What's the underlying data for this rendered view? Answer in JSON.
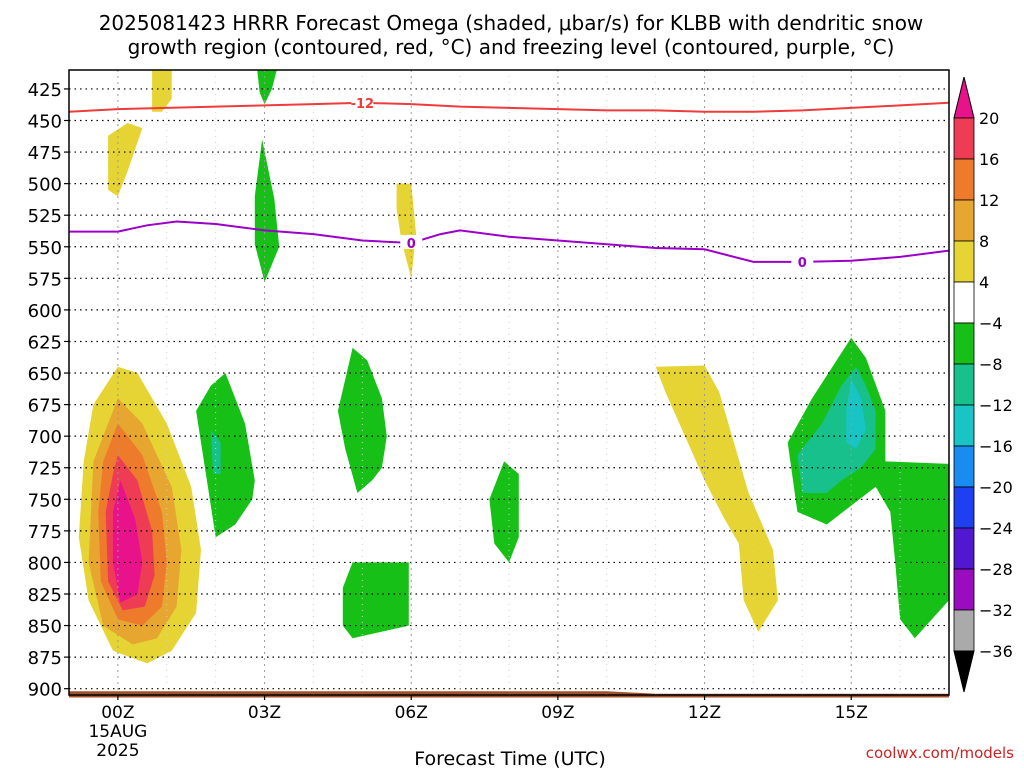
{
  "chart_data": {
    "type": "heatmap",
    "title_line1": "2025081423 HRRR Forecast Omega (shaded, μbar/s) for KLBB with dendritic snow",
    "title_line2": "growth region (contoured, red, °C) and freezing level (contoured, purple, °C)",
    "xlabel": "Forecast Time (UTC)",
    "credit": "coolwx.com/models",
    "x_range_hours": [
      -1,
      17
    ],
    "y_range_hpa": [
      905,
      410
    ],
    "y_ticks": [
      {
        "value": 425,
        "label": "425"
      },
      {
        "value": 450,
        "label": "450"
      },
      {
        "value": 475,
        "label": "475"
      },
      {
        "value": 500,
        "label": "500"
      },
      {
        "value": 525,
        "label": "525"
      },
      {
        "value": 550,
        "label": "550"
      },
      {
        "value": 575,
        "label": "575"
      },
      {
        "value": 600,
        "label": "600"
      },
      {
        "value": 625,
        "label": "625"
      },
      {
        "value": 650,
        "label": "650"
      },
      {
        "value": 675,
        "label": "675"
      },
      {
        "value": 700,
        "label": "700"
      },
      {
        "value": 725,
        "label": "725"
      },
      {
        "value": 750,
        "label": "750"
      },
      {
        "value": 775,
        "label": "775"
      },
      {
        "value": 800,
        "label": "800"
      },
      {
        "value": 825,
        "label": "825"
      },
      {
        "value": 850,
        "label": "850"
      },
      {
        "value": 875,
        "label": "875"
      },
      {
        "value": 900,
        "label": "900"
      }
    ],
    "x_ticks": [
      {
        "value": 0,
        "label": "00Z",
        "sub1": "15AUG",
        "sub2": "2025"
      },
      {
        "value": 3,
        "label": "03Z"
      },
      {
        "value": 6,
        "label": "06Z"
      },
      {
        "value": 9,
        "label": "09Z"
      },
      {
        "value": 12,
        "label": "12Z"
      },
      {
        "value": 15,
        "label": "15Z"
      }
    ],
    "colorbar": {
      "labels": [
        "20",
        "16",
        "12",
        "8",
        "4",
        "−4",
        "−8",
        "−12",
        "−16",
        "−20",
        "−24",
        "−28",
        "−32",
        "−36"
      ],
      "colors": [
        "#ee3c55",
        "#ee7a2c",
        "#e6a630",
        "#e6d434",
        "#ffffff",
        "#16c016",
        "#18c08c",
        "#18c4c4",
        "#188cf0",
        "#1e40f0",
        "#5018d0",
        "#9a0cc0",
        "#aaaaaa"
      ],
      "top_color": "#e8128a",
      "bottom_color": "#000000"
    },
    "dendritic_contour": {
      "label": "-12",
      "color": "#ee3c3c",
      "label_x": 5.0,
      "points": [
        [
          -1,
          443
        ],
        [
          0,
          441
        ],
        [
          1,
          440
        ],
        [
          2,
          439
        ],
        [
          3,
          438
        ],
        [
          4,
          437
        ],
        [
          5,
          436
        ],
        [
          6,
          437
        ],
        [
          7,
          439
        ],
        [
          8,
          440
        ],
        [
          9,
          441
        ],
        [
          10,
          442
        ],
        [
          11,
          442
        ],
        [
          12,
          443
        ],
        [
          13,
          443
        ],
        [
          14,
          442
        ],
        [
          15,
          440
        ],
        [
          16,
          438
        ],
        [
          17,
          436
        ]
      ]
    },
    "freezing_level": {
      "label": "0",
      "color": "#9a00c8",
      "label_x": 6.0,
      "label_x2": 14.0,
      "points": [
        [
          -1,
          538
        ],
        [
          0,
          538
        ],
        [
          0.6,
          533
        ],
        [
          1.2,
          530
        ],
        [
          2,
          532
        ],
        [
          3,
          537
        ],
        [
          4,
          540
        ],
        [
          5,
          545
        ],
        [
          6,
          547
        ],
        [
          6.6,
          540
        ],
        [
          7,
          537
        ],
        [
          8,
          542
        ],
        [
          9,
          545
        ],
        [
          10,
          548
        ],
        [
          11,
          551
        ],
        [
          12,
          552
        ],
        [
          13,
          562
        ],
        [
          14,
          562
        ],
        [
          15,
          561
        ],
        [
          16,
          558
        ],
        [
          17,
          553
        ]
      ]
    },
    "terrain": {
      "color": "#a0522d",
      "top_hpa_left": 902,
      "top_hpa_right": 904,
      "bottom_hpa": 907
    },
    "shaded_regions": [
      {
        "name": "pos-4-top-left",
        "color": "#e6d434",
        "points": [
          [
            0.7,
            410
          ],
          [
            1.1,
            410
          ],
          [
            1.1,
            433
          ],
          [
            0.9,
            443
          ],
          [
            0.7,
            443
          ]
        ]
      },
      {
        "name": "pos-4-early",
        "color": "#e6d434",
        "points": [
          [
            -0.2,
            462
          ],
          [
            0.2,
            452
          ],
          [
            0.5,
            456
          ],
          [
            0.2,
            490
          ],
          [
            0,
            510
          ],
          [
            -0.2,
            505
          ]
        ]
      },
      {
        "name": "neg-4-top",
        "color": "#16c016",
        "points": [
          [
            2.85,
            410
          ],
          [
            3.25,
            410
          ],
          [
            3.15,
            425
          ],
          [
            3,
            437
          ],
          [
            2.9,
            428
          ]
        ]
      },
      {
        "name": "neg-4-mid",
        "color": "#16c016",
        "points": [
          [
            2.95,
            465
          ],
          [
            3.2,
            512
          ],
          [
            3.3,
            550
          ],
          [
            3,
            578
          ],
          [
            2.8,
            548
          ],
          [
            2.8,
            510
          ]
        ]
      },
      {
        "name": "pos-4-06z",
        "color": "#e6d434",
        "points": [
          [
            5.7,
            500
          ],
          [
            6,
            500
          ],
          [
            6.1,
            540
          ],
          [
            6,
            575
          ],
          [
            5.8,
            545
          ],
          [
            5.7,
            520
          ]
        ]
      },
      {
        "name": "pos-4-main",
        "color": "#e6d434",
        "points": [
          [
            0,
            645
          ],
          [
            0.4,
            650
          ],
          [
            1,
            690
          ],
          [
            1.5,
            740
          ],
          [
            1.7,
            790
          ],
          [
            1.6,
            840
          ],
          [
            1.1,
            870
          ],
          [
            0.6,
            880
          ],
          [
            -0.1,
            870
          ],
          [
            -0.6,
            830
          ],
          [
            -0.8,
            780
          ],
          [
            -0.7,
            720
          ],
          [
            -0.5,
            675
          ]
        ]
      },
      {
        "name": "pos-8-main",
        "color": "#e6a630",
        "points": [
          [
            0,
            670
          ],
          [
            0.5,
            690
          ],
          [
            1.1,
            740
          ],
          [
            1.3,
            790
          ],
          [
            1.2,
            835
          ],
          [
            0.8,
            860
          ],
          [
            0.3,
            865
          ],
          [
            -0.3,
            850
          ],
          [
            -0.6,
            800
          ],
          [
            -0.5,
            720
          ]
        ]
      },
      {
        "name": "pos-12-main",
        "color": "#ee7a2c",
        "points": [
          [
            0,
            690
          ],
          [
            0.5,
            715
          ],
          [
            0.9,
            760
          ],
          [
            1,
            800
          ],
          [
            0.9,
            835
          ],
          [
            0.5,
            850
          ],
          [
            0,
            845
          ],
          [
            -0.35,
            815
          ],
          [
            -0.4,
            760
          ],
          [
            -0.3,
            720
          ]
        ]
      },
      {
        "name": "pos-16-main",
        "color": "#ee3c55",
        "points": [
          [
            0,
            715
          ],
          [
            0.4,
            735
          ],
          [
            0.7,
            775
          ],
          [
            0.75,
            810
          ],
          [
            0.55,
            835
          ],
          [
            0.1,
            838
          ],
          [
            -0.2,
            815
          ],
          [
            -0.25,
            760
          ],
          [
            -0.1,
            730
          ]
        ]
      },
      {
        "name": "pos-20-main",
        "color": "#e8128a",
        "points": [
          [
            0.05,
            735
          ],
          [
            0.35,
            765
          ],
          [
            0.5,
            800
          ],
          [
            0.4,
            825
          ],
          [
            0.05,
            832
          ],
          [
            -0.1,
            800
          ],
          [
            -0.1,
            760
          ]
        ]
      },
      {
        "name": "neg-4-02z",
        "color": "#16c016",
        "points": [
          [
            1.9,
            660
          ],
          [
            2.2,
            650
          ],
          [
            2.6,
            690
          ],
          [
            2.8,
            735
          ],
          [
            2.75,
            750
          ],
          [
            2.4,
            770
          ],
          [
            2,
            780
          ],
          [
            1.8,
            730
          ],
          [
            1.6,
            680
          ]
        ]
      },
      {
        "name": "neg-8-02z",
        "color": "#18c08c",
        "points": [
          [
            1.9,
            695
          ],
          [
            2.1,
            705
          ],
          [
            2.1,
            730
          ],
          [
            1.95,
            730
          ]
        ]
      },
      {
        "name": "neg-4-05z",
        "color": "#16c016",
        "points": [
          [
            4.8,
            630
          ],
          [
            5.1,
            640
          ],
          [
            5.4,
            670
          ],
          [
            5.5,
            700
          ],
          [
            5.4,
            725
          ],
          [
            5.2,
            735
          ],
          [
            4.9,
            745
          ],
          [
            4.65,
            710
          ],
          [
            4.5,
            680
          ]
        ]
      },
      {
        "name": "neg-4-05z-low",
        "color": "#16c016",
        "points": [
          [
            4.8,
            800
          ],
          [
            5.95,
            800
          ],
          [
            5.95,
            850
          ],
          [
            4.8,
            860
          ],
          [
            4.6,
            850
          ],
          [
            4.6,
            820
          ]
        ]
      },
      {
        "name": "neg-4-08z",
        "color": "#16c016",
        "points": [
          [
            7.9,
            720
          ],
          [
            8.2,
            730
          ],
          [
            8.2,
            780
          ],
          [
            8,
            800
          ],
          [
            7.7,
            785
          ],
          [
            7.6,
            750
          ]
        ]
      },
      {
        "name": "pos-4-12z",
        "color": "#e6d434",
        "points": [
          [
            11,
            645
          ],
          [
            12,
            644
          ],
          [
            12.3,
            665
          ],
          [
            12.6,
            705
          ],
          [
            12.9,
            745
          ],
          [
            13.4,
            790
          ],
          [
            13.5,
            830
          ],
          [
            13.1,
            855
          ],
          [
            12.8,
            830
          ],
          [
            12.7,
            785
          ],
          [
            12.4,
            765
          ],
          [
            12,
            735
          ],
          [
            11.6,
            700
          ],
          [
            11.2,
            665
          ]
        ]
      },
      {
        "name": "neg-4-15z",
        "color": "#16c016",
        "points": [
          [
            15,
            622
          ],
          [
            15.3,
            638
          ],
          [
            15.7,
            680
          ],
          [
            15.7,
            720
          ],
          [
            17,
            722
          ],
          [
            17,
            830
          ],
          [
            16.3,
            860
          ],
          [
            16,
            845
          ],
          [
            15.9,
            800
          ],
          [
            15.8,
            760
          ],
          [
            15.5,
            740
          ],
          [
            15,
            755
          ],
          [
            14.5,
            770
          ],
          [
            13.9,
            760
          ],
          [
            13.7,
            705
          ],
          [
            14.2,
            670
          ],
          [
            14.7,
            640
          ]
        ]
      },
      {
        "name": "neg-8-15z",
        "color": "#18c08c",
        "points": [
          [
            15.1,
            645
          ],
          [
            15.3,
            660
          ],
          [
            15.5,
            680
          ],
          [
            15.5,
            710
          ],
          [
            15.2,
            725
          ],
          [
            14.8,
            735
          ],
          [
            14.5,
            745
          ],
          [
            14,
            745
          ],
          [
            13.9,
            715
          ],
          [
            14.4,
            690
          ],
          [
            14.8,
            660
          ]
        ]
      },
      {
        "name": "neg-12-15z",
        "color": "#18c4c4",
        "points": [
          [
            15,
            655
          ],
          [
            15.2,
            670
          ],
          [
            15.3,
            695
          ],
          [
            15.1,
            710
          ],
          [
            14.9,
            705
          ],
          [
            14.9,
            680
          ]
        ]
      }
    ]
  }
}
